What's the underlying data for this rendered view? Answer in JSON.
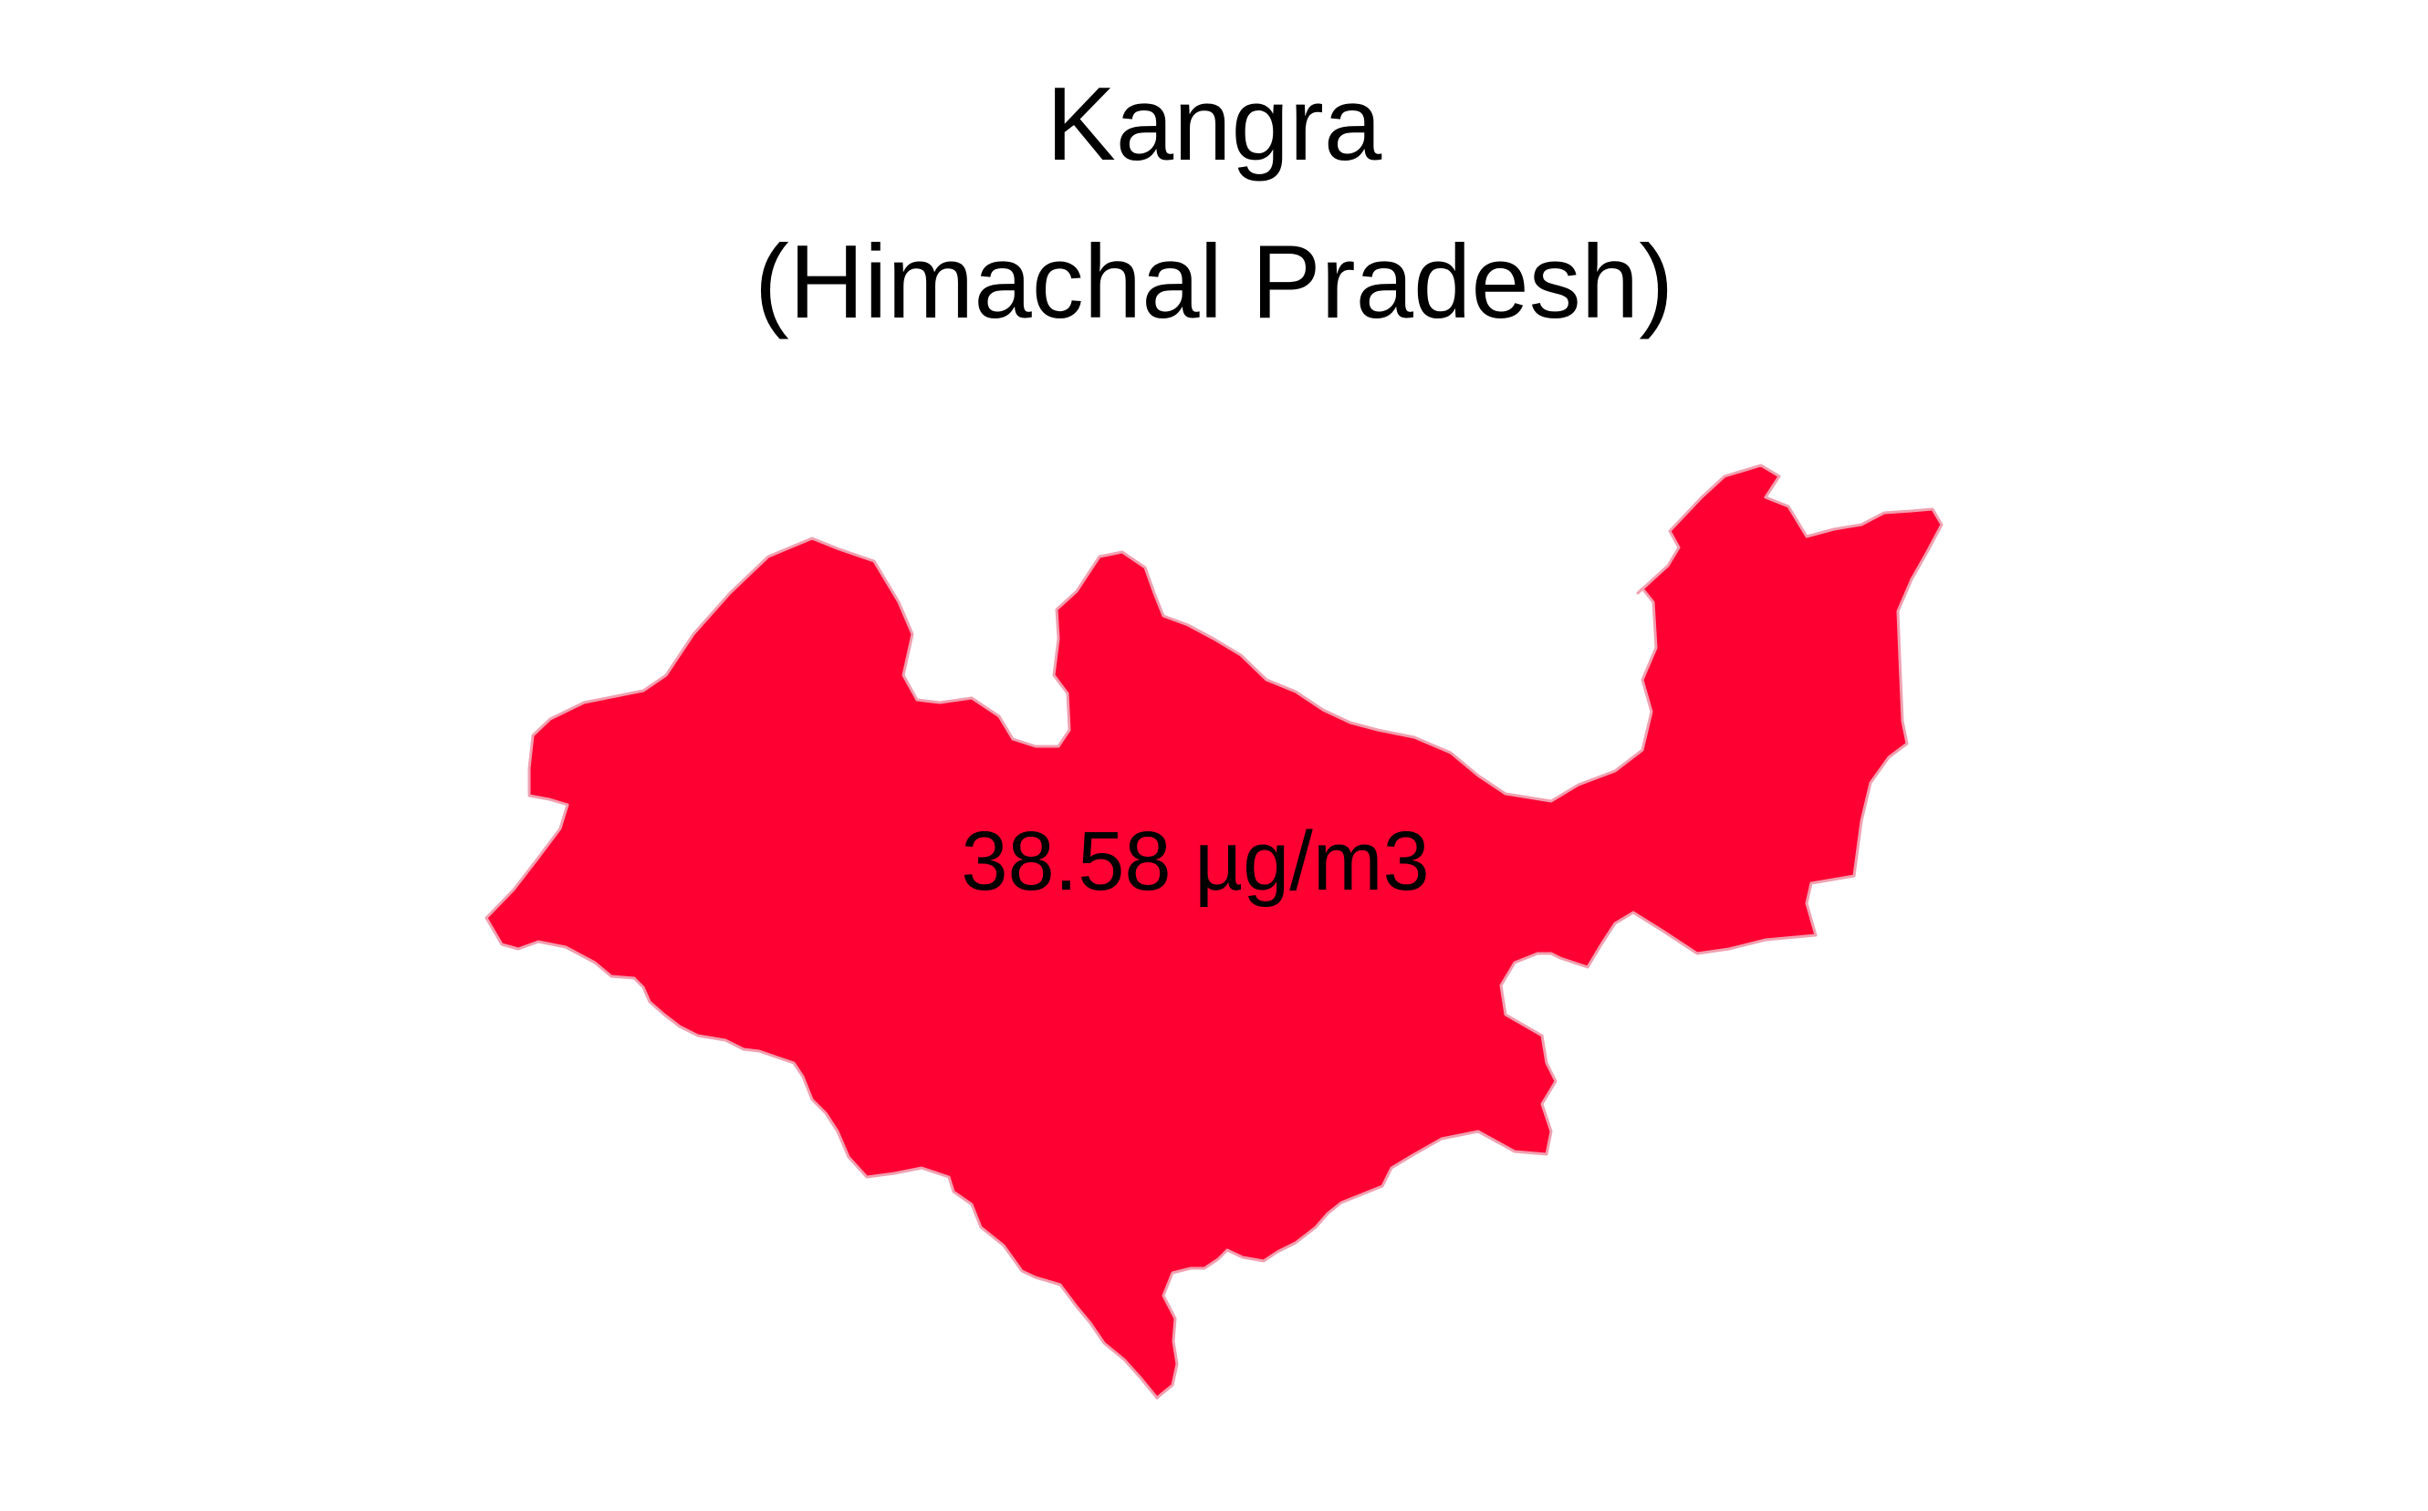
{
  "map": {
    "district": "Kangra",
    "state": "(Himachal Pradesh)",
    "value_label": "38.58 µg/m3",
    "fill_color": "#ff0033",
    "stroke_color": "#f0a0b0"
  }
}
